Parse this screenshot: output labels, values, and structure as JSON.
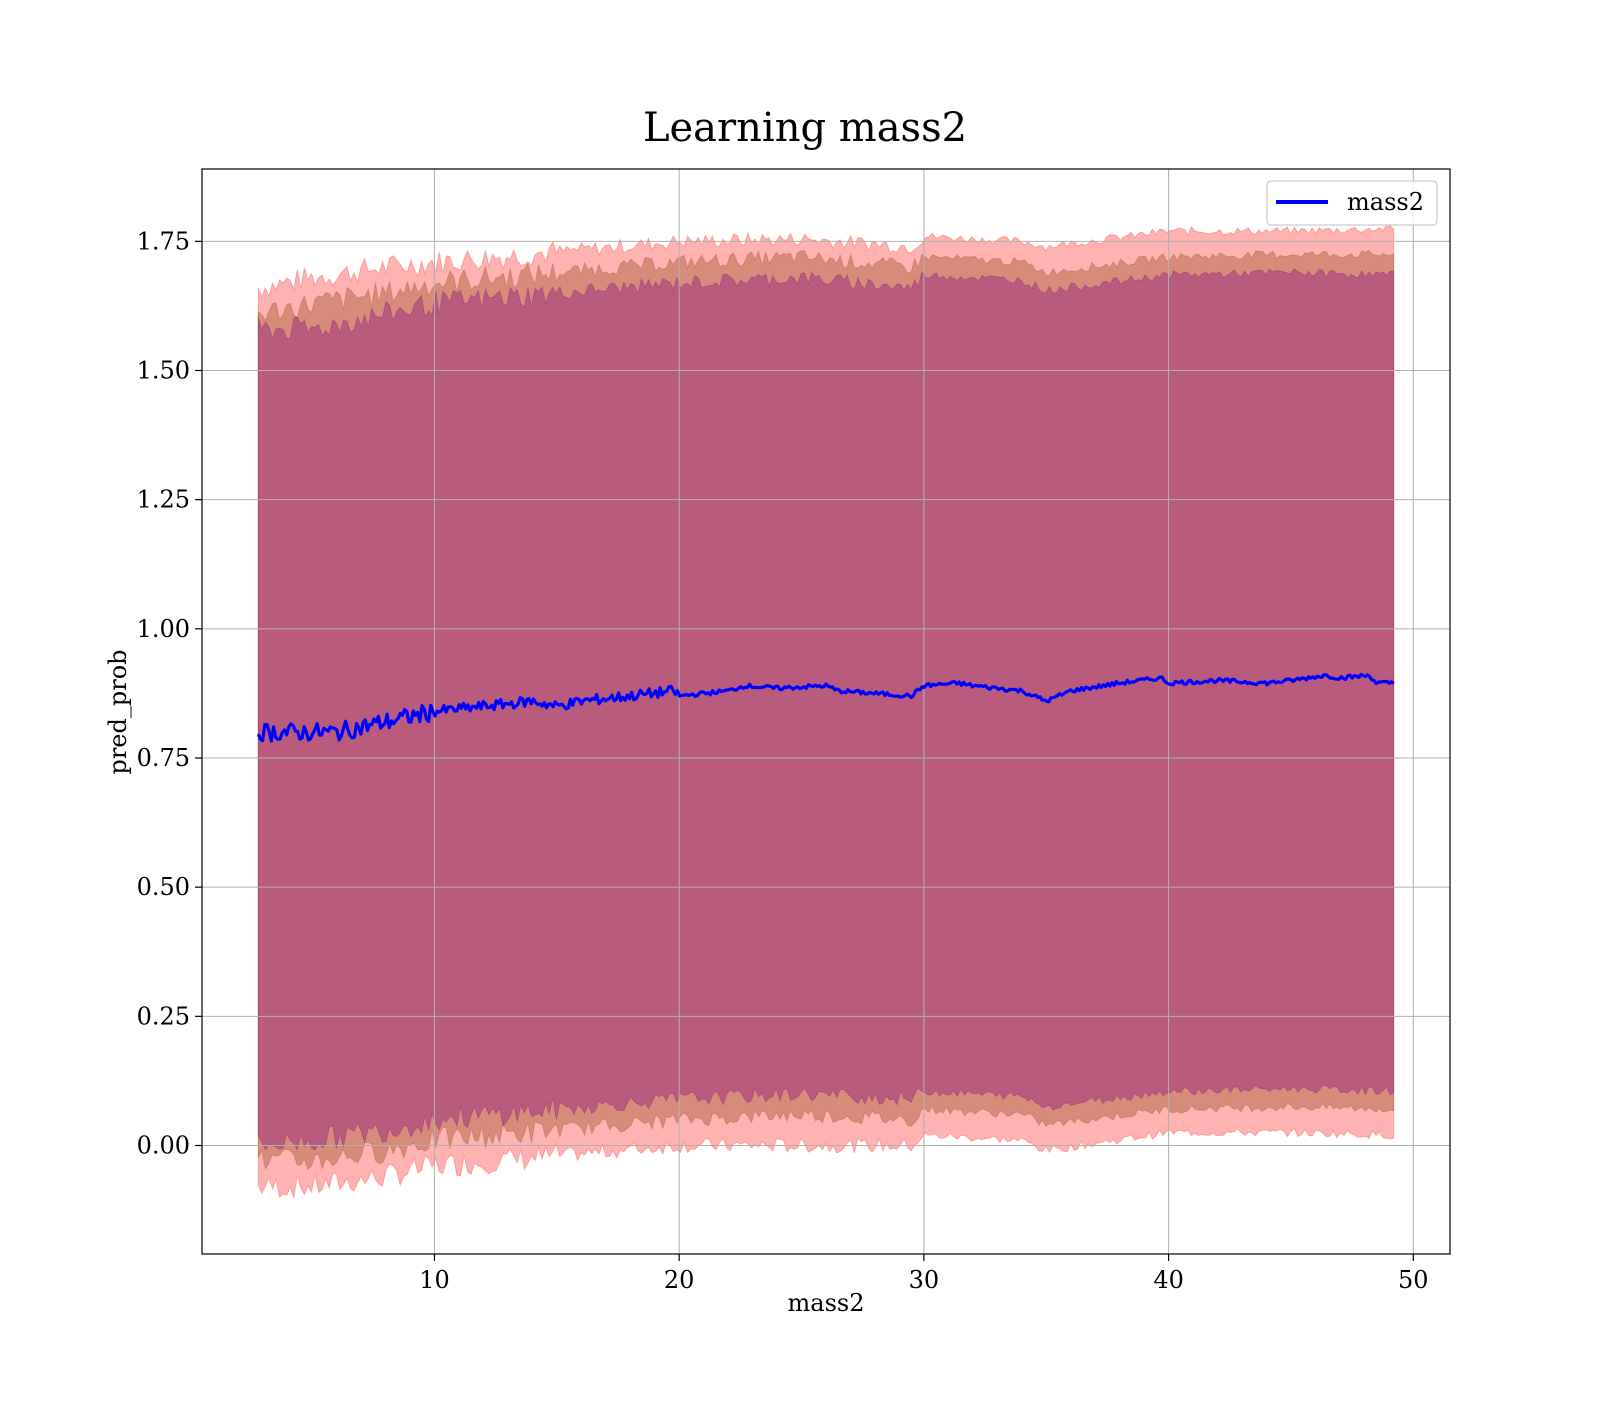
{
  "chart_data": {
    "type": "line",
    "title": "Learning mass2",
    "xlabel": "mass2",
    "ylabel": "pred_prob",
    "xlim": [
      0.5,
      51.5
    ],
    "ylim": [
      -0.21,
      1.89
    ],
    "xticks": [
      10,
      20,
      30,
      40,
      50
    ],
    "xtick_labels": [
      "10",
      "20",
      "30",
      "40",
      "50"
    ],
    "yticks": [
      0.0,
      0.25,
      0.5,
      0.75,
      1.0,
      1.25,
      1.5,
      1.75
    ],
    "ytick_labels": [
      "0.00",
      "0.25",
      "0.50",
      "0.75",
      "1.00",
      "1.25",
      "1.50",
      "1.75"
    ],
    "grid": true,
    "legend": {
      "position": "top-right",
      "entries": [
        "mass2"
      ]
    },
    "colors": {
      "line": "#0000ff",
      "band_outer": "#ff0000",
      "band_middle": "#8b4513",
      "band_inner": "#800080",
      "grid": "#b0b0b0"
    },
    "series": [
      {
        "name": "mass2",
        "x": [
          2.8,
          4,
          6,
          8,
          10,
          12,
          14,
          15,
          16,
          18,
          19.8,
          20,
          22,
          22.7,
          24,
          26,
          26.5,
          28,
          29.5,
          30,
          31.4,
          32,
          34,
          35,
          36,
          38,
          39.7,
          40,
          42,
          44,
          45,
          46.4,
          47,
          48.2,
          48.5,
          49.2
        ],
        "y": [
          0.8,
          0.8,
          0.8,
          0.82,
          0.84,
          0.85,
          0.86,
          0.85,
          0.86,
          0.87,
          0.88,
          0.87,
          0.88,
          0.89,
          0.885,
          0.89,
          0.88,
          0.875,
          0.87,
          0.89,
          0.895,
          0.89,
          0.88,
          0.86,
          0.88,
          0.895,
          0.905,
          0.895,
          0.9,
          0.895,
          0.9,
          0.91,
          0.905,
          0.91,
          0.895,
          0.895
        ]
      }
    ],
    "bands": {
      "x": [
        2.8,
        5,
        8,
        10,
        15,
        20,
        25,
        29.5,
        30,
        34,
        35,
        40,
        45,
        49.2
      ],
      "outer_upper": [
        1.66,
        1.68,
        1.7,
        1.71,
        1.73,
        1.75,
        1.755,
        1.74,
        1.76,
        1.75,
        1.74,
        1.77,
        1.77,
        1.775
      ],
      "outer_lower": [
        -0.08,
        -0.08,
        -0.06,
        -0.04,
        -0.02,
        0.0,
        0.0,
        0.0,
        0.02,
        0.01,
        -0.01,
        0.025,
        0.025,
        0.02
      ],
      "middle_upper": [
        1.61,
        1.63,
        1.65,
        1.67,
        1.69,
        1.71,
        1.72,
        1.7,
        1.72,
        1.71,
        1.69,
        1.72,
        1.725,
        1.725
      ],
      "middle_lower": [
        -0.03,
        -0.03,
        -0.01,
        0.01,
        0.03,
        0.05,
        0.06,
        0.05,
        0.07,
        0.06,
        0.04,
        0.07,
        0.075,
        0.07
      ],
      "inner_upper": [
        1.58,
        1.58,
        1.61,
        1.63,
        1.65,
        1.67,
        1.68,
        1.66,
        1.685,
        1.675,
        1.655,
        1.685,
        1.69,
        1.685
      ],
      "inner_lower": [
        0.0,
        0.01,
        0.03,
        0.05,
        0.07,
        0.09,
        0.1,
        0.09,
        0.105,
        0.095,
        0.075,
        0.105,
        0.11,
        0.105
      ]
    }
  }
}
